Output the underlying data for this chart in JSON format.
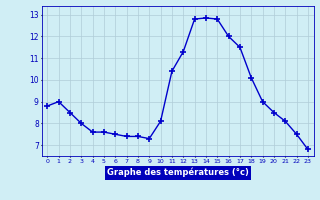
{
  "x_values": [
    0,
    1,
    2,
    3,
    4,
    5,
    6,
    7,
    8,
    9,
    10,
    11,
    12,
    13,
    14,
    15,
    16,
    17,
    18,
    19,
    20,
    21,
    22,
    23
  ],
  "y_values": [
    8.8,
    9.0,
    8.5,
    8.0,
    7.6,
    7.6,
    7.5,
    7.4,
    7.4,
    7.3,
    8.1,
    10.4,
    11.3,
    12.8,
    12.85,
    12.8,
    12.0,
    11.5,
    10.1,
    9.0,
    8.5,
    8.1,
    7.5,
    6.8
  ],
  "ylim": [
    6.5,
    13.4
  ],
  "yticks": [
    7,
    8,
    9,
    10,
    11,
    12,
    13
  ],
  "xlabel": "Graphe des températures (°c)",
  "xtick_labels": [
    "0",
    "1",
    "2",
    "3",
    "4",
    "5",
    "6",
    "7",
    "8",
    "9",
    "10",
    "11",
    "12",
    "13",
    "14",
    "15",
    "16",
    "17",
    "18",
    "19",
    "20",
    "21",
    "22",
    "23"
  ],
  "line_color": "#0000cc",
  "marker_color": "#0000cc",
  "bg_color": "#d0eef5",
  "grid_color": "#b0ccd8",
  "xlabel_bg": "#0000bb",
  "xlabel_text_color": "#ffffff",
  "tick_label_color": "#0000bb"
}
